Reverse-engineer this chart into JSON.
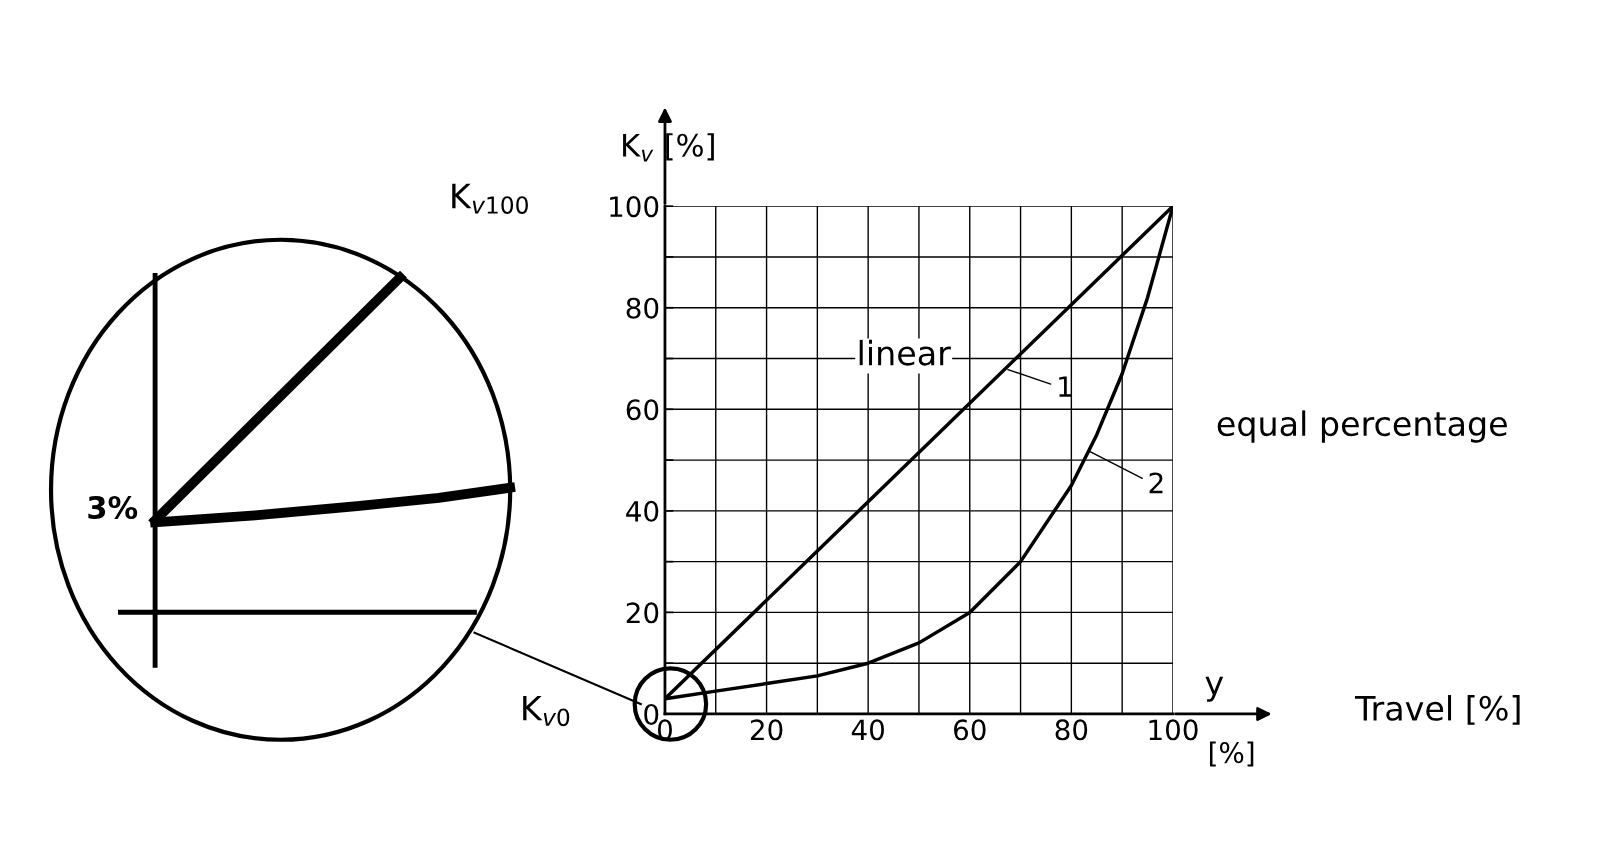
{
  "chart_data": {
    "type": "line",
    "ylabel": "K$_{v}$ [%]",
    "x": [
      0,
      10,
      20,
      30,
      40,
      50,
      60,
      70,
      80,
      85,
      90,
      95,
      100
    ],
    "series": [
      {
        "name": "1",
        "color": "#000000",
        "x": [
          0,
          100
        ],
        "values": [
          3,
          100
        ]
      },
      {
        "name": "2",
        "color": "#000000",
        "values": [
          3,
          4.5,
          6,
          7.5,
          10,
          14,
          20,
          30,
          45,
          55,
          67,
          82,
          100
        ]
      }
    ],
    "xlim": [
      0,
      100
    ],
    "ylim": [
      0,
      100
    ],
    "xticks": [
      0,
      20,
      40,
      60,
      80,
      100
    ],
    "yticks": [
      0,
      20,
      40,
      60,
      80,
      100
    ],
    "grid": true,
    "marker": "none",
    "line_style": "solid",
    "legend": "right",
    "annotations": [
      "K$_{v100}$",
      "K$_{v0}$",
      "linear",
      "equal percentage",
      "y",
      "Travel [%]",
      "[%]",
      "3%"
    ]
  }
}
